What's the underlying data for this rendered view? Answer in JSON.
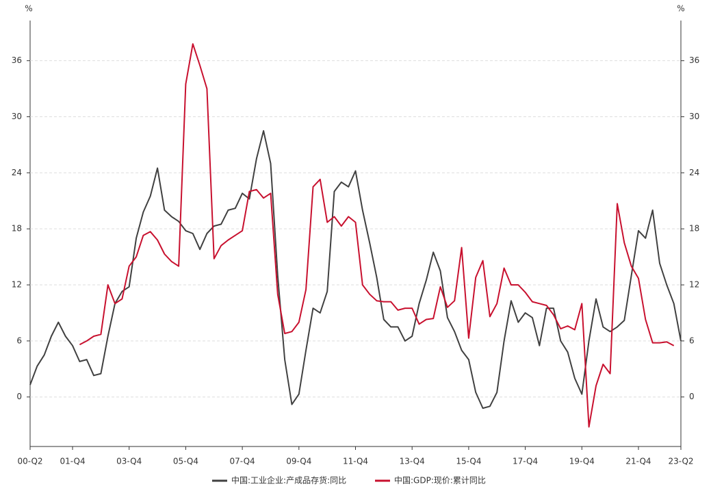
{
  "chart_data": {
    "type": "line",
    "y_unit": "%",
    "categories": [
      "00-Q2",
      null,
      null,
      null,
      null,
      null,
      "01-Q4",
      null,
      null,
      null,
      null,
      null,
      null,
      null,
      "03-Q4",
      null,
      null,
      null,
      null,
      null,
      null,
      null,
      "05-Q4",
      null,
      null,
      null,
      null,
      null,
      null,
      null,
      "07-Q4",
      null,
      null,
      null,
      null,
      null,
      null,
      null,
      "09-Q4",
      null,
      null,
      null,
      null,
      null,
      null,
      null,
      "11-Q4",
      null,
      null,
      null,
      null,
      null,
      null,
      null,
      "13-Q4",
      null,
      null,
      null,
      null,
      null,
      null,
      null,
      "15-Q4",
      null,
      null,
      null,
      null,
      null,
      null,
      null,
      "17-Q4",
      null,
      null,
      null,
      null,
      null,
      null,
      null,
      "19-Q4",
      null,
      null,
      null,
      null,
      null,
      null,
      null,
      "21-Q4",
      null,
      null,
      null,
      null,
      null,
      "23-Q2"
    ],
    "series": [
      {
        "name": "中国:工业企业:产成品存货:同比",
        "color": "#404040",
        "values": [
          1.3,
          3.3,
          4.5,
          6.5,
          8.0,
          6.5,
          5.5,
          3.8,
          4.0,
          2.3,
          2.5,
          6.5,
          10.0,
          11.3,
          11.8,
          17.0,
          19.8,
          21.5,
          24.5,
          20.0,
          19.3,
          18.8,
          17.8,
          17.5,
          15.8,
          17.5,
          18.3,
          18.5,
          20.0,
          20.2,
          21.8,
          21.2,
          25.5,
          28.5,
          25.0,
          13.0,
          4.0,
          -0.8,
          0.3,
          5.0,
          9.5,
          9.0,
          11.3,
          22.0,
          23.0,
          22.5,
          24.2,
          20.0,
          16.5,
          12.8,
          8.3,
          7.5,
          7.5,
          6.0,
          6.5,
          10.0,
          12.5,
          15.5,
          13.5,
          8.5,
          7.0,
          5.0,
          4.0,
          0.5,
          -1.2,
          -1.0,
          0.5,
          6.0,
          10.3,
          8.0,
          9.0,
          8.5,
          5.5,
          9.5,
          9.5,
          6.0,
          4.8,
          2.0,
          0.3,
          6.0,
          10.5,
          7.5,
          7.0,
          7.5,
          8.2,
          13.0,
          17.8,
          17.0,
          20.0,
          14.3,
          12.0,
          10.0,
          6.0
        ]
      },
      {
        "name": "中国:GDP:现价:累计同比",
        "color": "#c8102e",
        "values": [
          null,
          null,
          null,
          null,
          null,
          null,
          null,
          5.6,
          6.0,
          6.5,
          6.7,
          12.0,
          10.0,
          10.5,
          14.0,
          15.0,
          17.3,
          17.7,
          16.8,
          15.3,
          14.5,
          14.0,
          33.5,
          37.8,
          35.5,
          33.0,
          14.8,
          16.2,
          16.8,
          17.3,
          17.8,
          22.0,
          22.2,
          21.3,
          21.8,
          11.0,
          6.8,
          7.0,
          8.0,
          11.5,
          22.5,
          23.3,
          18.7,
          19.3,
          18.3,
          19.3,
          18.7,
          12.0,
          11.0,
          10.3,
          10.2,
          10.2,
          9.3,
          9.5,
          9.5,
          7.8,
          8.3,
          8.4,
          11.8,
          9.6,
          10.3,
          16.0,
          6.3,
          12.8,
          14.6,
          8.6,
          10.0,
          13.8,
          12.0,
          12.0,
          11.2,
          10.2,
          10.0,
          9.8,
          8.8,
          7.3,
          7.6,
          7.2,
          10.0,
          -3.2,
          1.2,
          3.5,
          2.5,
          20.7,
          16.5,
          14.0,
          12.7,
          8.3,
          5.8,
          5.8,
          5.9,
          5.5,
          null
        ]
      }
    ],
    "ylim": [
      -5.3,
      40.3
    ],
    "yticks": [
      0,
      6,
      12,
      18,
      24,
      30,
      36
    ],
    "grid": true,
    "legend": "bottom"
  }
}
